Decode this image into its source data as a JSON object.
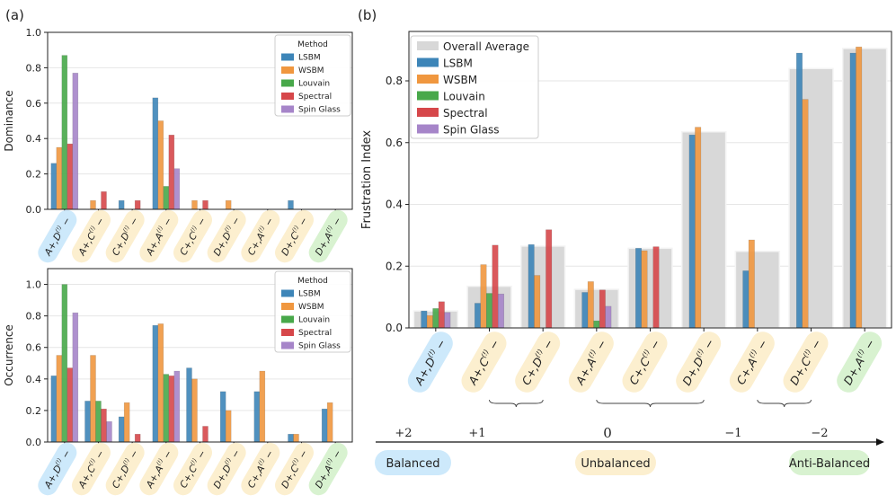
{
  "panel_a_label": "(a)",
  "panel_b_label": "(b)",
  "colors": {
    "LSBM": "#3d85b8",
    "WSBM": "#f0973f",
    "Louvain": "#48a84a",
    "Spectral": "#d6474a",
    "Spin Glass": "#a685c9",
    "Overall Average": "#d8d8d8",
    "balanced": "#cde9fb",
    "unbalanced": "#fcefcf",
    "antibalanced": "#d8f2d0"
  },
  "categories": [
    "A+,D(!)−",
    "A+,C(!)−",
    "C+,D(!)−",
    "A+,A(!)−",
    "C+,C(!)−",
    "D+,D(!)−",
    "C+,A(!)−",
    "D+,C(!)−",
    "D+,A(!)−"
  ],
  "category_class": [
    "balanced",
    "unbalanced",
    "unbalanced",
    "unbalanced",
    "unbalanced",
    "unbalanced",
    "unbalanced",
    "unbalanced",
    "antibalanced"
  ],
  "chart_data": [
    {
      "id": "dominance",
      "type": "bar",
      "title": "",
      "xlabel": "",
      "ylabel": "Dominance",
      "ylim": [
        0,
        1.0
      ],
      "yticks": [
        "0.0",
        "0.2",
        "0.4",
        "0.6",
        "0.8",
        "1.0"
      ],
      "legend_title": "Method",
      "legend_position": "top-right",
      "categories": [
        "A+,D(!)−",
        "A+,C(!)−",
        "C+,D(!)−",
        "A+,A(!)−",
        "C+,C(!)−",
        "D+,D(!)−",
        "C+,A(!)−",
        "D+,C(!)−",
        "D+,A(!)−"
      ],
      "series": [
        {
          "name": "LSBM",
          "values": [
            0.26,
            0,
            0.05,
            0.63,
            0,
            0,
            0,
            0.05,
            0
          ]
        },
        {
          "name": "WSBM",
          "values": [
            0.35,
            0.05,
            0,
            0.5,
            0.05,
            0.05,
            0,
            0,
            0
          ]
        },
        {
          "name": "Louvain",
          "values": [
            0.87,
            0,
            0,
            0.13,
            0,
            0,
            0,
            0,
            0
          ]
        },
        {
          "name": "Spectral",
          "values": [
            0.37,
            0.1,
            0.05,
            0.42,
            0.05,
            0,
            0,
            0,
            0
          ]
        },
        {
          "name": "Spin Glass",
          "values": [
            0.77,
            0,
            0,
            0.23,
            0,
            0,
            0,
            0,
            0
          ]
        }
      ]
    },
    {
      "id": "occurrence",
      "type": "bar",
      "title": "",
      "xlabel": "",
      "ylabel": "Occurrence",
      "ylim": [
        0,
        1.1
      ],
      "yticks": [
        "0.0",
        "0.2",
        "0.4",
        "0.6",
        "0.8",
        "1.0"
      ],
      "legend_title": "Method",
      "legend_position": "top-right",
      "categories": [
        "A+,D(!)−",
        "A+,C(!)−",
        "C+,D(!)−",
        "A+,A(!)−",
        "C+,C(!)−",
        "D+,D(!)−",
        "C+,A(!)−",
        "D+,C(!)−",
        "D+,A(!)−"
      ],
      "series": [
        {
          "name": "LSBM",
          "values": [
            0.42,
            0.26,
            0.16,
            0.74,
            0.47,
            0.32,
            0.32,
            0.05,
            0.21
          ]
        },
        {
          "name": "WSBM",
          "values": [
            0.55,
            0.55,
            0.25,
            0.75,
            0.4,
            0.2,
            0.45,
            0.05,
            0.25
          ]
        },
        {
          "name": "Louvain",
          "values": [
            1.0,
            0.26,
            0,
            0.43,
            0,
            0,
            0,
            0,
            0
          ]
        },
        {
          "name": "Spectral",
          "values": [
            0.47,
            0.21,
            0.05,
            0.42,
            0.1,
            0,
            0,
            0,
            0
          ]
        },
        {
          "name": "Spin Glass",
          "values": [
            0.82,
            0.13,
            0,
            0.45,
            0,
            0,
            0,
            0,
            0
          ]
        }
      ]
    },
    {
      "id": "frustration",
      "type": "bar",
      "title": "",
      "xlabel": "",
      "ylabel": "Frustration Index",
      "ylim": [
        0,
        0.96
      ],
      "yticks": [
        "0.0",
        "0.2",
        "0.4",
        "0.6",
        "0.8"
      ],
      "legend_position": "top-left",
      "categories": [
        "A+,D(!)−",
        "A+,C(!)−",
        "C+,D(!)−",
        "A+,A(!)−",
        "C+,C(!)−",
        "D+,D(!)−",
        "C+,A(!)−",
        "D+,C(!)−",
        "D+,A(!)−"
      ],
      "average": {
        "name": "Overall Average",
        "values": [
          0.055,
          0.135,
          0.265,
          0.125,
          0.258,
          0.635,
          0.248,
          0.84,
          0.905
        ]
      },
      "series": [
        {
          "name": "LSBM",
          "values": [
            0.055,
            0.08,
            0.27,
            0.115,
            0.258,
            0.625,
            0.185,
            0.89,
            0.89
          ]
        },
        {
          "name": "WSBM",
          "values": [
            0.04,
            0.205,
            0.17,
            0.15,
            0.25,
            0.65,
            0.285,
            0.74,
            0.91
          ]
        },
        {
          "name": "Louvain",
          "values": [
            0.063,
            0.112,
            0,
            0.023,
            0,
            0,
            0,
            0,
            0
          ]
        },
        {
          "name": "Spectral",
          "values": [
            0.085,
            0.268,
            0.318,
            0.123,
            0.263,
            0,
            0,
            0,
            0
          ]
        },
        {
          "name": "Spin Glass",
          "values": [
            0.05,
            0.11,
            0,
            0.07,
            0,
            0,
            0,
            0,
            0
          ]
        }
      ]
    }
  ],
  "balance_scale": {
    "ticks": [
      "+2",
      "+1",
      "0",
      "−1",
      "−2"
    ],
    "labels": [
      "Balanced",
      "Unbalanced",
      "Anti-Balanced"
    ]
  }
}
